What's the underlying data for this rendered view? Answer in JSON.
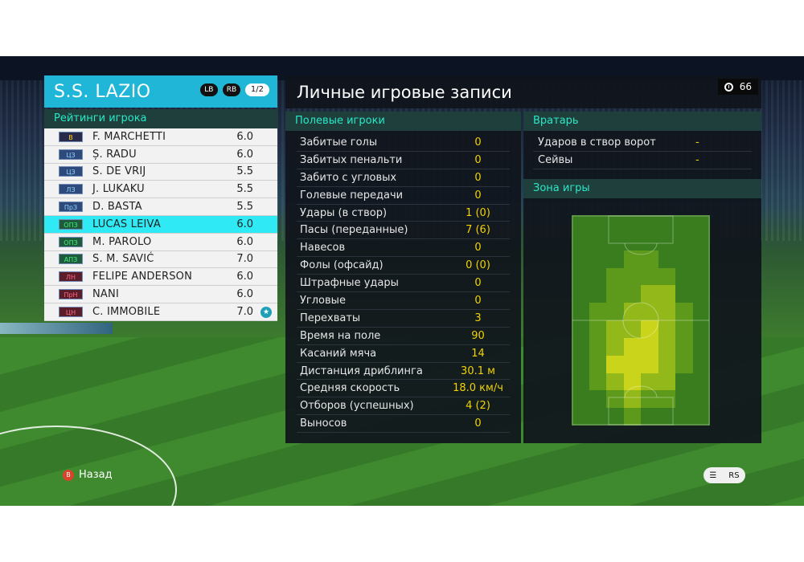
{
  "team": {
    "name": "S.S. LAZIO",
    "lb": "LB",
    "rb": "RB",
    "page": "1/2"
  },
  "ratings_title": "Рейтинги игрока",
  "players": [
    {
      "pos": "В",
      "name": "F. MARCHETTI",
      "rating": "6.0",
      "role": "gk"
    },
    {
      "pos": "ЦЗ",
      "name": "Ș. RADU",
      "rating": "6.0",
      "role": "def"
    },
    {
      "pos": "ЦЗ",
      "name": "S. DE VRIJ",
      "rating": "5.5",
      "role": "def"
    },
    {
      "pos": "ЛЗ",
      "name": "J. LUKAKU",
      "rating": "5.5",
      "role": "def"
    },
    {
      "pos": "ПрЗ",
      "name": "D. BASTA",
      "rating": "5.5",
      "role": "def"
    },
    {
      "pos": "ОПЗ",
      "name": "LUCAS LEIVA",
      "rating": "6.0",
      "role": "mid",
      "selected": true
    },
    {
      "pos": "ОПЗ",
      "name": "M. PAROLO",
      "rating": "6.0",
      "role": "mid"
    },
    {
      "pos": "АПЗ",
      "name": "S. M. SAVIĆ",
      "rating": "7.0",
      "role": "mid"
    },
    {
      "pos": "ЛН",
      "name": "FELIPE ANDERSON",
      "rating": "6.0",
      "role": "fwd"
    },
    {
      "pos": "ПрН",
      "name": "NANI",
      "rating": "6.0",
      "role": "fwd"
    },
    {
      "pos": "ЦН",
      "name": "C. IMMOBILE",
      "rating": "7.0",
      "role": "fwd",
      "star": true
    }
  ],
  "main_title": "Личные игровые записи",
  "timer": "66",
  "outfield_title": "Полевые игроки",
  "stats": [
    {
      "label": "Забитые голы",
      "value": "0"
    },
    {
      "label": "Забитых пенальти",
      "value": "0"
    },
    {
      "label": "Забито с угловых",
      "value": "0"
    },
    {
      "label": "Голевые передачи",
      "value": "0"
    },
    {
      "label": "Удары (в створ)",
      "value": "1 (0)"
    },
    {
      "label": "Пасы (переданные)",
      "value": "7 (6)"
    },
    {
      "label": "Навесов",
      "value": "0"
    },
    {
      "label": "Фолы (офсайд)",
      "value": "0 (0)"
    },
    {
      "label": "Штрафные удары",
      "value": "0"
    },
    {
      "label": "Угловые",
      "value": "0"
    },
    {
      "label": "Перехваты",
      "value": "3"
    },
    {
      "label": "Время на поле",
      "value": "90"
    },
    {
      "label": "Касаний мяча",
      "value": "14"
    },
    {
      "label": "Дистанция дриблинга",
      "value": "30.1 м"
    },
    {
      "label": "Средняя скорость",
      "value": "18.0 км/ч"
    },
    {
      "label": "Отборов (успешных)",
      "value": "4 (2)"
    },
    {
      "label": "Выносов",
      "value": "0"
    }
  ],
  "gk_title": "Вратарь",
  "gk_stats": [
    {
      "label": "Ударов в створ ворот",
      "value": "-"
    },
    {
      "label": "Сейвы",
      "value": "-"
    }
  ],
  "zone_title": "Зона игры",
  "heatmap": {
    "colors": {
      "low": "#3a7d1e",
      "mid": "#5d9a1c",
      "high": "#93b81a",
      "max": "#c9d41a"
    },
    "grid": [
      [
        0,
        0,
        0,
        0,
        0,
        0,
        0,
        0
      ],
      [
        0,
        0,
        0,
        0,
        0,
        0,
        0,
        0
      ],
      [
        0,
        0,
        0,
        1,
        1,
        0,
        0,
        0
      ],
      [
        0,
        0,
        1,
        1,
        1,
        1,
        0,
        0
      ],
      [
        0,
        0,
        1,
        1,
        2,
        2,
        0,
        0
      ],
      [
        0,
        1,
        1,
        2,
        2,
        2,
        1,
        0
      ],
      [
        0,
        1,
        2,
        2,
        3,
        2,
        1,
        0
      ],
      [
        0,
        1,
        2,
        3,
        3,
        2,
        1,
        0
      ],
      [
        0,
        1,
        3,
        3,
        3,
        2,
        1,
        0
      ],
      [
        0,
        1,
        2,
        3,
        2,
        2,
        0,
        0
      ],
      [
        0,
        0,
        1,
        2,
        1,
        1,
        0,
        0
      ],
      [
        0,
        0,
        0,
        1,
        0,
        0,
        0,
        0
      ]
    ]
  },
  "hints": {
    "back_icon": "B",
    "back_label": "Назад",
    "right_icon_a": "☰",
    "right_icon_b": "RS"
  }
}
